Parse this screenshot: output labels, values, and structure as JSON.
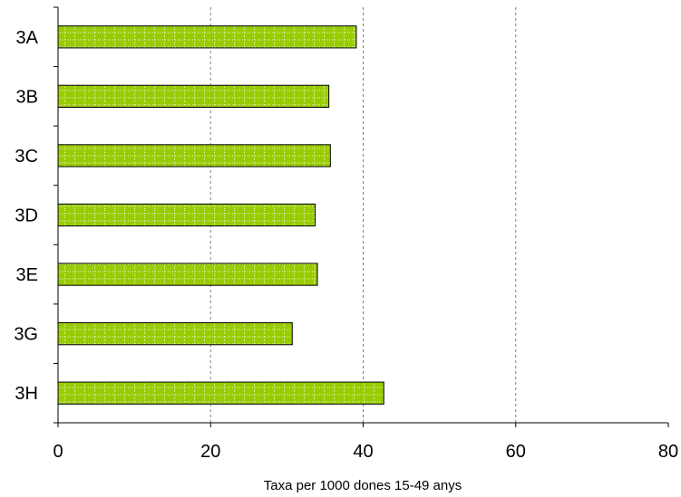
{
  "chart_data": {
    "type": "bar",
    "orientation": "horizontal",
    "categories": [
      "3A",
      "3B",
      "3C",
      "3D",
      "3E",
      "3G",
      "3H"
    ],
    "values": [
      39.1,
      35.5,
      35.7,
      33.7,
      34.0,
      30.7,
      42.7
    ],
    "xlabel": "Taxa per 1000 dones 15-49 anys",
    "ylabel": "",
    "xlim": [
      0,
      80
    ],
    "xticks": [
      "0",
      "20",
      "40",
      "60",
      "80"
    ],
    "grid": "vertical dashed",
    "legend": "none",
    "colors": {
      "bar_fill": "#99cc00",
      "bar_pattern": "#e8f5c0",
      "bar_stroke": "#000000",
      "grid": "#808080"
    }
  }
}
